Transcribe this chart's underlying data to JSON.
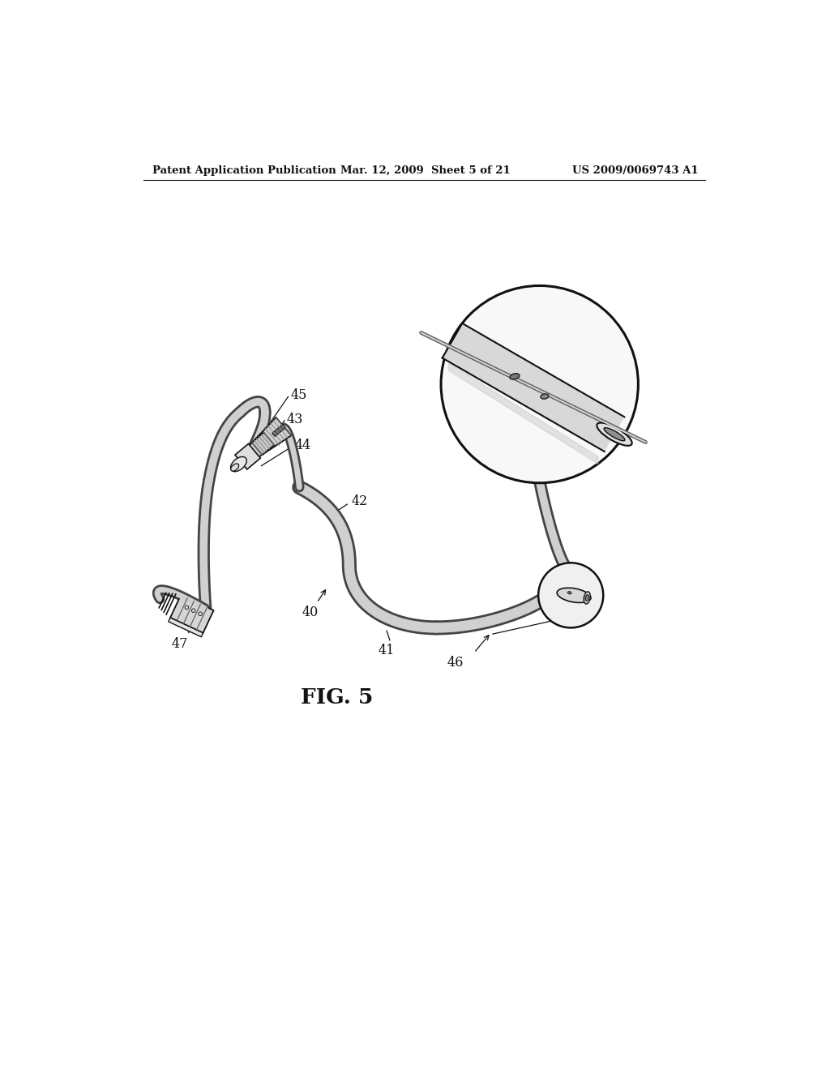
{
  "title": "FIG. 5",
  "header_left": "Patent Application Publication",
  "header_center": "Mar. 12, 2009  Sheet 5 of 21",
  "header_right": "US 2009/0069743 A1",
  "background_color": "#ffffff",
  "line_color": "#111111",
  "gray_dark": "#555555",
  "gray_mid": "#888888",
  "gray_light": "#cccccc",
  "gray_fill": "#d8d8d8",
  "gray_shade": "#aaaaaa"
}
